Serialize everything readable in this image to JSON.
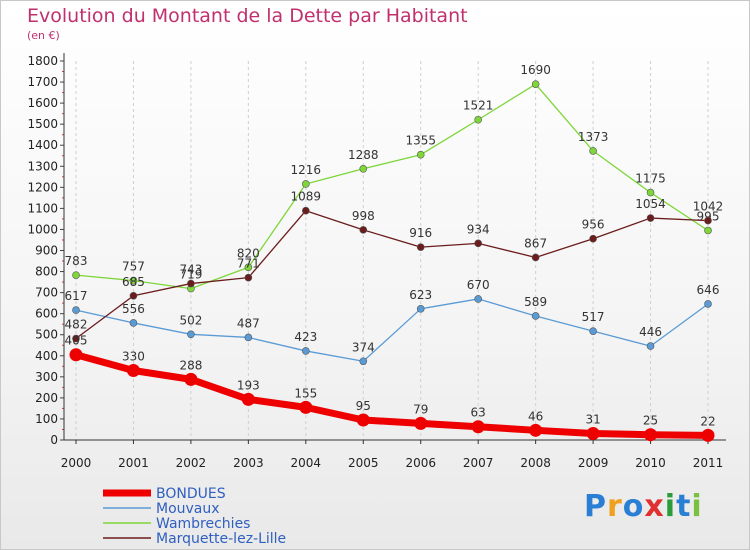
{
  "chart_data": {
    "type": "line",
    "title": "Evolution du Montant de la Dette par Habitant",
    "subtitle": "(en €)",
    "x": [
      "2000",
      "2001",
      "2002",
      "2003",
      "2004",
      "2005",
      "2006",
      "2007",
      "2008",
      "2009",
      "2010",
      "2011"
    ],
    "yticks": [
      0,
      100,
      200,
      300,
      400,
      500,
      600,
      700,
      800,
      900,
      1000,
      1100,
      1200,
      1300,
      1400,
      1500,
      1600,
      1700,
      1800
    ],
    "ylim": [
      0,
      1800
    ],
    "series": [
      {
        "name": "BONDUES",
        "color": "#ee0000",
        "values": [
          405,
          330,
          288,
          193,
          155,
          95,
          79,
          63,
          46,
          31,
          25,
          22
        ]
      },
      {
        "name": "Mouvaux",
        "color": "#5b9bd5",
        "values": [
          617,
          556,
          502,
          487,
          423,
          374,
          623,
          670,
          589,
          517,
          446,
          646
        ]
      },
      {
        "name": "Wambrechies",
        "color": "#7ed63a",
        "values": [
          783,
          757,
          719,
          820,
          1216,
          1288,
          1355,
          1521,
          1690,
          1373,
          1175,
          995
        ]
      },
      {
        "name": "Marquette-lez-Lille",
        "color": "#6b1c1c",
        "values": [
          482,
          685,
          743,
          771,
          1089,
          998,
          916,
          934,
          867,
          956,
          1054,
          1042
        ]
      }
    ]
  },
  "logo": {
    "letters": [
      "P",
      "r",
      "o",
      "x",
      "i",
      "t",
      "i"
    ],
    "colors": [
      "#2a7fd4",
      "#f0a020",
      "#2a7fd4",
      "#e03030",
      "#2a9d3a",
      "#2a7fd4",
      "#7ac142"
    ]
  }
}
